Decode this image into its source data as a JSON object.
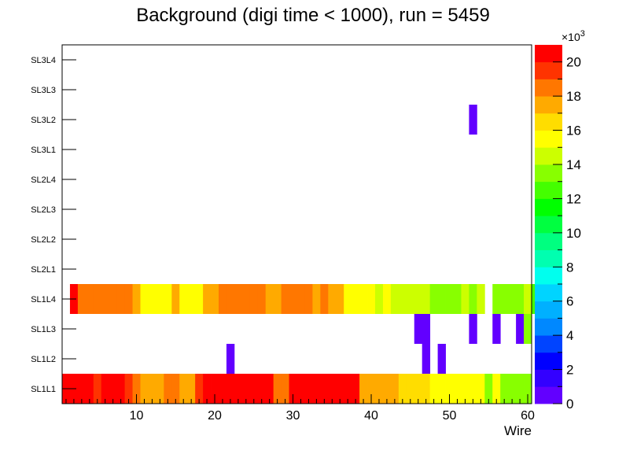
{
  "chart_data": {
    "type": "heatmap",
    "title": "Background (digi time < 1000), run = 5459",
    "xlabel": "Wire",
    "ylabel": "",
    "x_range": [
      0.5,
      60.5
    ],
    "x_ticks": [
      10,
      20,
      30,
      40,
      50,
      60
    ],
    "layers": [
      "SL1L1",
      "SL1L2",
      "SL1L3",
      "SL1L4",
      "SL2L1",
      "SL2L2",
      "SL2L3",
      "SL2L4",
      "SL3L1",
      "SL3L2",
      "SL3L3",
      "SL3L4"
    ],
    "z_range": [
      0,
      21
    ],
    "z_ticks": [
      0,
      2,
      4,
      6,
      8,
      10,
      12,
      14,
      16,
      18,
      20
    ],
    "z_exponent_label": "×10",
    "z_exponent": "3",
    "palette": [
      "#6200ff",
      "#3300ff",
      "#0000ff",
      "#0044ff",
      "#0088ff",
      "#00b0ff",
      "#00d4ff",
      "#00ffee",
      "#00ffb0",
      "#00ff80",
      "#00ff40",
      "#00ff00",
      "#44ff00",
      "#88ff00",
      "#ccff00",
      "#ffff00",
      "#ffdd00",
      "#ffaa00",
      "#ff7700",
      "#ff3300",
      "#ff0000"
    ],
    "data": {
      "SL1L1": [
        20.5,
        20.5,
        20.5,
        20.5,
        19.5,
        20.5,
        20.5,
        20.5,
        19.5,
        18.5,
        17.5,
        17.5,
        17.5,
        18.5,
        18.5,
        17.5,
        17.5,
        19.5,
        20.5,
        20.5,
        20.5,
        20.5,
        20.5,
        20.5,
        20.5,
        20.5,
        20.5,
        18.5,
        18.5,
        20.5,
        20.5,
        20.5,
        20.5,
        20.5,
        20.5,
        20.5,
        20.5,
        20.5,
        17.5,
        17.5,
        17.5,
        17.5,
        17.5,
        16.5,
        16.5,
        16.5,
        16.5,
        15.5,
        15.5,
        15.5,
        15.5,
        15.5,
        15.5,
        15.5,
        13.5,
        15.5,
        13.5,
        13.5,
        13.5,
        13.5,
        null
      ],
      "SL1L2": [
        null,
        null,
        null,
        null,
        null,
        null,
        null,
        null,
        null,
        null,
        null,
        null,
        null,
        null,
        null,
        null,
        null,
        null,
        null,
        null,
        null,
        0.5,
        null,
        null,
        null,
        null,
        null,
        null,
        null,
        null,
        null,
        null,
        null,
        null,
        null,
        null,
        null,
        null,
        null,
        null,
        null,
        null,
        null,
        null,
        null,
        null,
        0.5,
        null,
        0.5,
        null,
        null,
        null,
        null,
        null,
        null,
        null,
        null,
        null,
        null,
        null
      ],
      "SL1L3": [
        null,
        null,
        null,
        null,
        null,
        null,
        null,
        null,
        null,
        null,
        null,
        null,
        null,
        null,
        null,
        null,
        null,
        null,
        null,
        null,
        null,
        null,
        null,
        null,
        null,
        null,
        null,
        null,
        null,
        null,
        null,
        null,
        null,
        null,
        null,
        null,
        null,
        null,
        null,
        null,
        null,
        null,
        null,
        null,
        null,
        0.5,
        0.5,
        null,
        null,
        null,
        null,
        null,
        0.5,
        null,
        null,
        0.5,
        null,
        null,
        0.5,
        13.5
      ],
      "SL1L4": [
        null,
        20.5,
        18.5,
        18.5,
        18.5,
        18.5,
        18.5,
        18.5,
        18.5,
        17.5,
        15.5,
        15.5,
        15.5,
        15.5,
        17.5,
        15.5,
        15.5,
        15.5,
        17.5,
        17.5,
        18.5,
        18.5,
        18.5,
        18.5,
        18.5,
        18.5,
        17.5,
        17.5,
        18.5,
        18.5,
        18.5,
        18.5,
        17.5,
        18.5,
        17.5,
        17.5,
        15.5,
        15.5,
        15.5,
        15.5,
        14.5,
        15.5,
        14.5,
        14.5,
        14.5,
        14.5,
        14.5,
        13.5,
        13.5,
        13.5,
        13.5,
        14.5,
        13.5,
        14.5,
        null,
        13.5,
        13.5,
        13.5,
        13.5,
        14.5,
        12.5
      ],
      "SL2L1": [],
      "SL2L2": [],
      "SL2L3": [],
      "SL2L4": [],
      "SL3L1": [],
      "SL3L2": [
        null,
        null,
        null,
        null,
        null,
        null,
        null,
        null,
        null,
        null,
        null,
        null,
        null,
        null,
        null,
        null,
        null,
        null,
        null,
        null,
        null,
        null,
        null,
        null,
        null,
        null,
        null,
        null,
        null,
        null,
        null,
        null,
        null,
        null,
        null,
        null,
        null,
        null,
        null,
        null,
        null,
        null,
        null,
        null,
        null,
        null,
        null,
        null,
        null,
        null,
        null,
        null,
        0.5,
        null,
        null,
        null,
        null,
        null,
        null,
        null
      ],
      "SL3L3": [],
      "SL3L4": []
    }
  }
}
